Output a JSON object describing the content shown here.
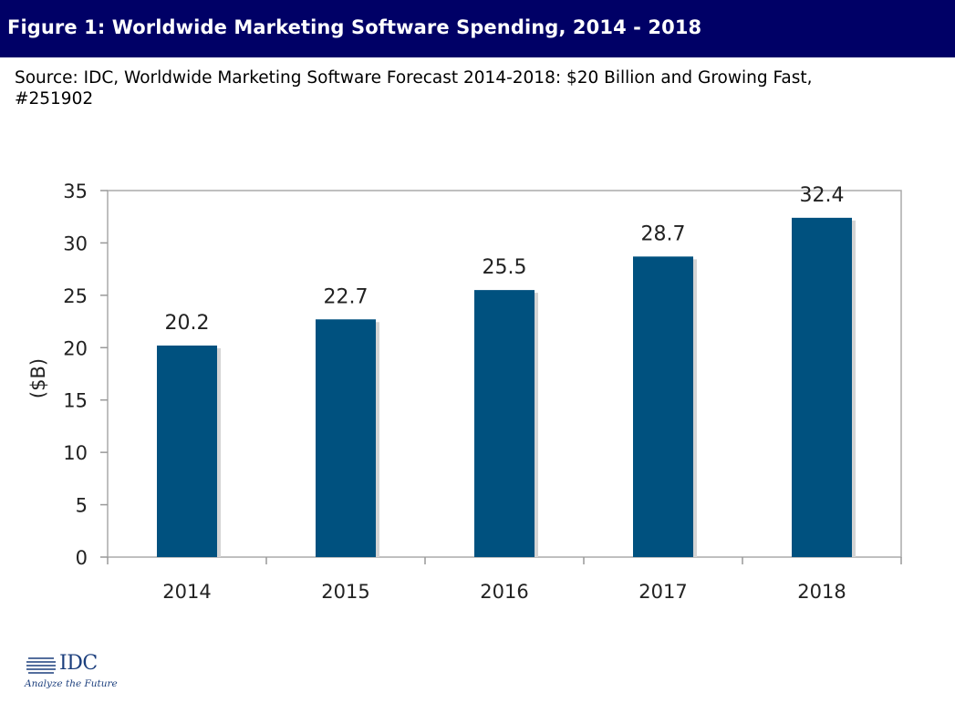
{
  "header": {
    "title": "Figure 1: Worldwide Marketing Software Spending, 2014 - 2018"
  },
  "source": {
    "line1": "Source: IDC, Worldwide Marketing Software Forecast 2014-2018: $20 Billion and Growing Fast,",
    "line2": "#251902"
  },
  "chart_data": {
    "type": "bar",
    "categories": [
      "2014",
      "2015",
      "2016",
      "2017",
      "2018"
    ],
    "values": [
      20.2,
      22.7,
      25.5,
      28.7,
      32.4
    ],
    "data_labels": [
      "20.2",
      "22.7",
      "25.5",
      "28.7",
      "32.4"
    ],
    "title": "",
    "xlabel": "",
    "ylabel": "($B)",
    "ylim": [
      0,
      35
    ],
    "yticks": [
      0,
      5,
      10,
      15,
      20,
      25,
      30,
      35
    ],
    "grid": false,
    "legend": "none",
    "bar_color": "#00517f"
  },
  "logo": {
    "wordmark": "IDC",
    "tagline": "Analyze the Future",
    "color": "#1c3f7d"
  },
  "colors": {
    "header_bg": "#000066",
    "header_text": "#ffffff"
  }
}
